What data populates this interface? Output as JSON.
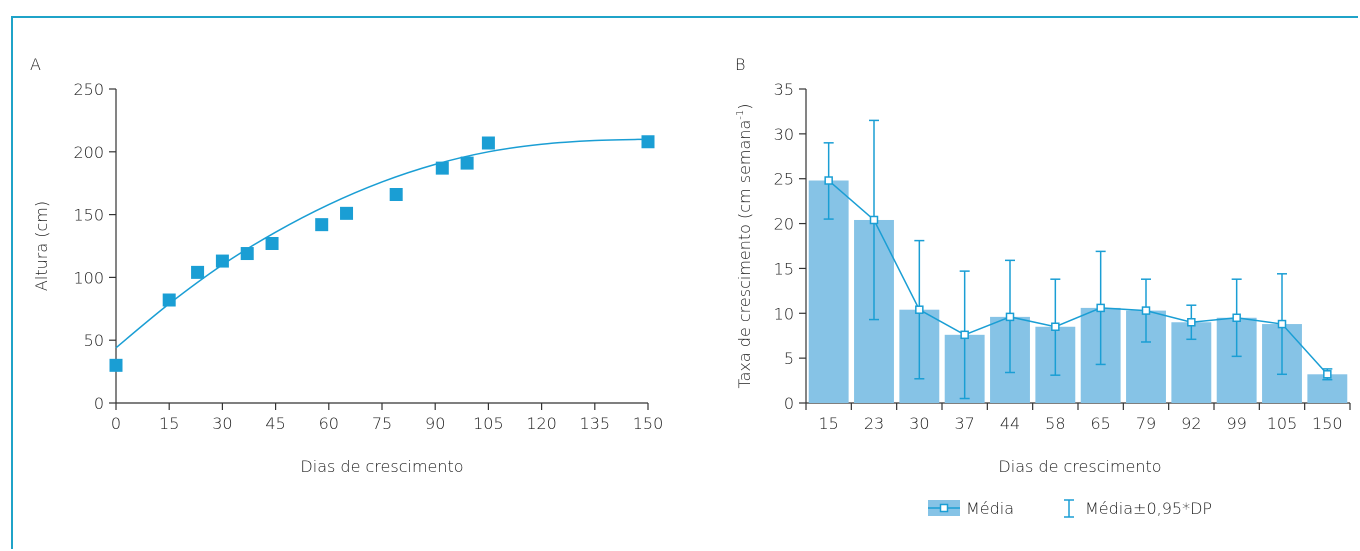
{
  "chart_data": [
    {
      "panel": "A",
      "type": "scatter",
      "xlabel": "Dias de crescimento",
      "ylabel": "Altura (cm)",
      "xlim": [
        0,
        150
      ],
      "ylim": [
        0,
        250
      ],
      "xticks": [
        0,
        15,
        30,
        45,
        60,
        75,
        90,
        105,
        120,
        135,
        150
      ],
      "yticks": [
        0,
        50,
        100,
        150,
        200,
        250
      ],
      "grid": false,
      "colors": {
        "points": "#1a9ed4",
        "fit": "#1a9ed4"
      },
      "points": [
        {
          "x": 0,
          "y": 30
        },
        {
          "x": 15,
          "y": 82
        },
        {
          "x": 23,
          "y": 104
        },
        {
          "x": 30,
          "y": 113
        },
        {
          "x": 37,
          "y": 119
        },
        {
          "x": 44,
          "y": 127
        },
        {
          "x": 58,
          "y": 142
        },
        {
          "x": 65,
          "y": 151
        },
        {
          "x": 79,
          "y": 166
        },
        {
          "x": 92,
          "y": 187
        },
        {
          "x": 99,
          "y": 191
        },
        {
          "x": 105,
          "y": 207
        },
        {
          "x": 150,
          "y": 208
        }
      ],
      "fit_curve": {
        "points": [
          [
            0,
            44
          ],
          [
            15,
            79
          ],
          [
            30,
            110
          ],
          [
            45,
            136
          ],
          [
            60,
            158
          ],
          [
            75,
            176
          ],
          [
            90,
            190
          ],
          [
            105,
            200
          ],
          [
            120,
            206
          ],
          [
            135,
            209
          ],
          [
            150,
            210
          ]
        ]
      }
    },
    {
      "panel": "B",
      "type": "bar",
      "xlabel": "Dias de crescimento",
      "ylabel": "Taxa de crescimento (cm semana⁻¹)",
      "categories": [
        "15",
        "23",
        "30",
        "37",
        "44",
        "58",
        "65",
        "79",
        "92",
        "99",
        "105",
        "150"
      ],
      "ylim": [
        0,
        35
      ],
      "yticks": [
        0,
        5,
        10,
        15,
        20,
        25,
        30,
        35
      ],
      "grid": false,
      "legend_position": "bottom",
      "colors": {
        "bars": "#86c3e6",
        "line": "#1a9ed4",
        "errorbars": "#1a9ed4"
      },
      "series": [
        {
          "name": "Média",
          "type": "bar+line",
          "values": [
            24.8,
            20.4,
            10.4,
            7.6,
            9.6,
            8.5,
            10.6,
            10.3,
            9.0,
            9.5,
            8.8,
            3.2
          ]
        },
        {
          "name": "Média±0,95*DP",
          "type": "errorbar",
          "lower": [
            20.5,
            9.3,
            2.7,
            0.5,
            3.4,
            3.1,
            4.3,
            6.8,
            7.1,
            5.2,
            3.2,
            2.6
          ],
          "upper": [
            29.0,
            31.5,
            18.1,
            14.7,
            15.9,
            13.8,
            16.9,
            13.8,
            10.9,
            13.8,
            14.4,
            3.8
          ]
        }
      ]
    }
  ],
  "legend": {
    "mean_label": "Média",
    "error_label": "Média±0,95*DP"
  }
}
